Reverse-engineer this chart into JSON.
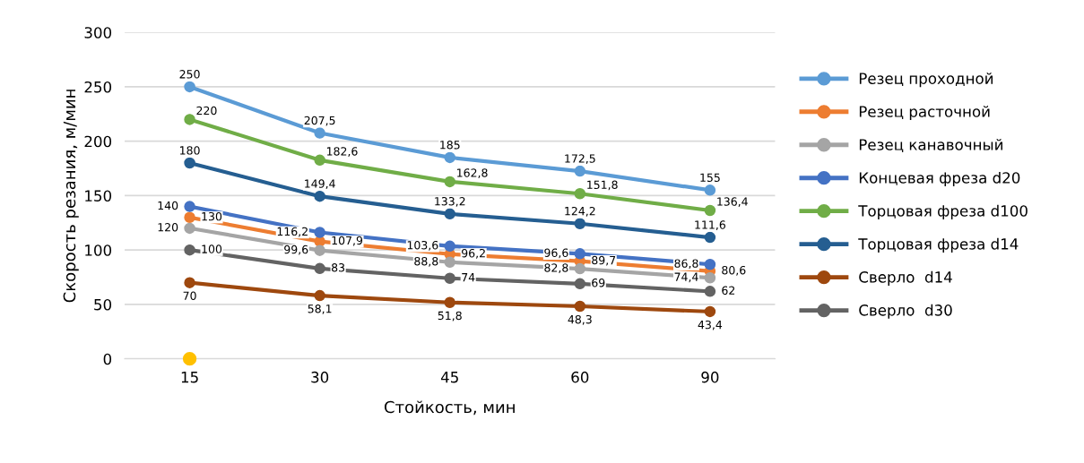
{
  "chart_data": {
    "type": "line",
    "xlabel": "Стойкость, мин",
    "ylabel": "Скорость резания, м/мин",
    "categories": [
      "15",
      "30",
      "45",
      "60",
      "90"
    ],
    "ylim": [
      0,
      300
    ],
    "yticks": [
      0,
      50,
      100,
      150,
      200,
      250,
      300
    ],
    "grid": "y",
    "legend": "right",
    "marker": "circle",
    "line_style": "solid",
    "series": [
      {
        "name": "Резец проходной",
        "color": "#5b9bd5",
        "values": [
          250,
          207.5,
          185,
          172.5,
          155
        ],
        "value_labels": [
          "250",
          "207,5",
          "185",
          "172,5",
          "155"
        ]
      },
      {
        "name": "Резец расточной",
        "color": "#ed7d31",
        "values": [
          130,
          107.9,
          96.2,
          89.7,
          80.6
        ],
        "value_labels": [
          "130",
          "107,9",
          "96,2",
          "89,7",
          "80,6"
        ]
      },
      {
        "name": "Резец канавочный",
        "color": "#a5a5a5",
        "values": [
          120,
          99.6,
          88.8,
          82.8,
          74.4
        ],
        "value_labels": [
          "120",
          "99,6",
          "88,8",
          "82,8",
          "74,4"
        ]
      },
      {
        "name": "Концевая фреза d20",
        "color": "#4472c4",
        "values": [
          140,
          116.2,
          103.6,
          96.6,
          86.8
        ],
        "value_labels": [
          "140",
          "116,2",
          "103,6",
          "96,6",
          "86,8"
        ]
      },
      {
        "name": "Торцовая фреза d100",
        "color": "#70ad47",
        "values": [
          220,
          182.6,
          162.8,
          151.8,
          136.4
        ],
        "value_labels": [
          "220",
          "182,6",
          "162,8",
          "151,8",
          "136,4"
        ]
      },
      {
        "name": "Торцовая фреза d14",
        "color": "#255e91",
        "values": [
          180,
          149.4,
          133.2,
          124.2,
          111.6
        ],
        "value_labels": [
          "180",
          "149,4",
          "133,2",
          "124,2",
          "111,6"
        ]
      },
      {
        "name": "Сверло  d14",
        "color": "#9e480e",
        "values": [
          70,
          58.1,
          51.8,
          48.3,
          43.4
        ],
        "value_labels": [
          "70",
          "58,1",
          "51,8",
          "48,3",
          "43,4"
        ]
      },
      {
        "name": "Сверло  d30",
        "color": "#636363",
        "values": [
          100,
          83,
          74,
          69,
          62
        ],
        "value_labels": [
          "100",
          "83",
          "74",
          "69",
          "62"
        ]
      },
      {
        "type": "scatter",
        "color": "#ffc000",
        "values": [
          0,
          null,
          null,
          null,
          null
        ]
      }
    ]
  }
}
